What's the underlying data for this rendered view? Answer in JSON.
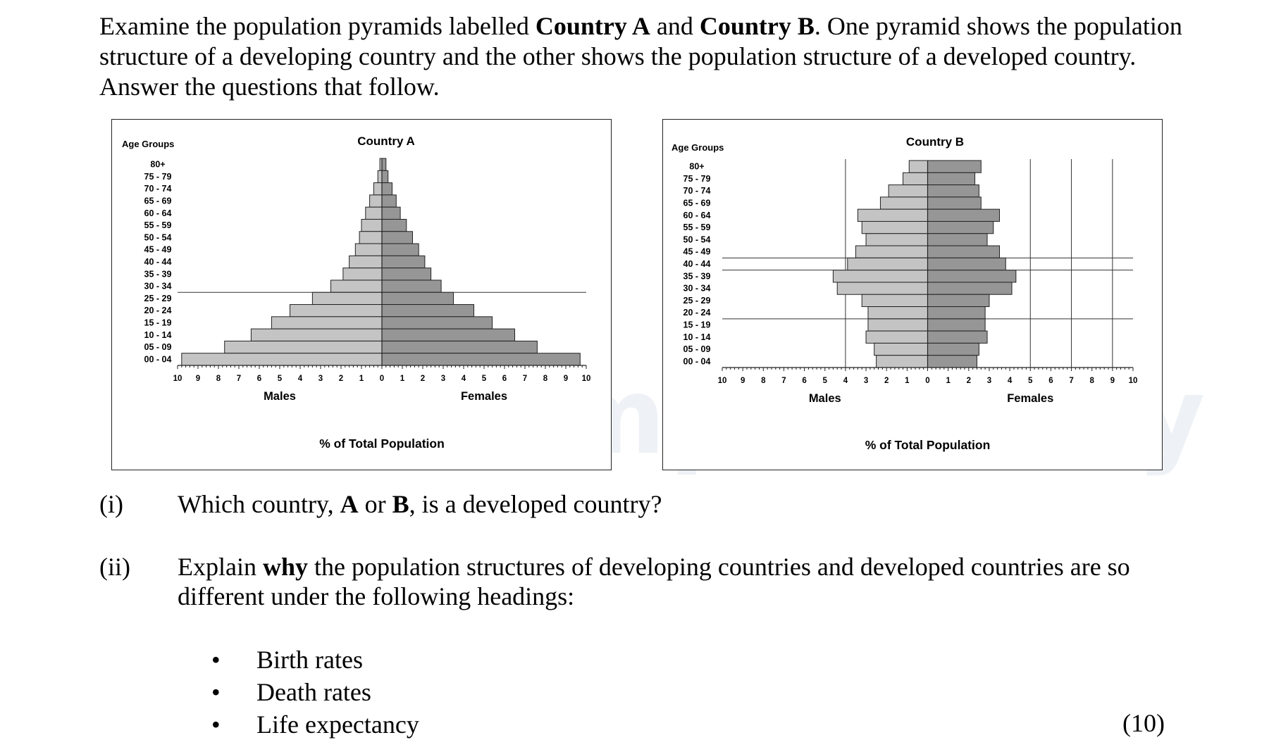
{
  "intro": {
    "part1": "Examine the population pyramids labelled ",
    "country_a": "Country A",
    "and": " and ",
    "country_b": "Country B",
    "part2": ".  One pyramid shows the population structure of a developing country and the other shows the population structure of a developed country. Answer the questions that follow."
  },
  "watermark": "simplestudy",
  "chart_data": [
    {
      "type": "bar",
      "title": "Country A",
      "y_axis_title": "Age Groups",
      "categories": [
        "80+",
        "75 - 79",
        "70 - 74",
        "65 - 69",
        "60 - 64",
        "55 - 59",
        "50 - 54",
        "45 - 49",
        "40 - 44",
        "35 - 39",
        "30 - 34",
        "25 - 29",
        "20 - 24",
        "15 - 19",
        "10 - 14",
        "05 - 09",
        "00 - 04"
      ],
      "series": [
        {
          "name": "Males",
          "values": [
            0.1,
            0.2,
            0.4,
            0.6,
            0.8,
            1.0,
            1.1,
            1.3,
            1.6,
            1.9,
            2.5,
            3.4,
            4.5,
            5.4,
            6.4,
            7.7,
            9.8
          ]
        },
        {
          "name": "Females",
          "values": [
            0.2,
            0.3,
            0.5,
            0.7,
            0.9,
            1.2,
            1.5,
            1.8,
            2.1,
            2.4,
            2.9,
            3.5,
            4.5,
            5.4,
            6.5,
            7.6,
            9.7
          ]
        }
      ],
      "xlabel": "% of Total Population",
      "xlim": [
        -10,
        10
      ],
      "tick_labels": [
        "10",
        "9",
        "8",
        "7",
        "6",
        "5",
        "4",
        "3",
        "2",
        "1",
        "0",
        "1",
        "2",
        "3",
        "4",
        "5",
        "6",
        "7",
        "8",
        "9",
        "10"
      ],
      "grid_lines_x": [],
      "grid_lines_y_between": [
        "30 - 34"
      ],
      "colors": {
        "males": "#c4c4c4",
        "females": "#969696"
      }
    },
    {
      "type": "bar",
      "title": "Country B",
      "y_axis_title": "Age Groups",
      "categories": [
        "80+",
        "75 - 79",
        "70 - 74",
        "65 - 69",
        "60 - 64",
        "55 - 59",
        "50 - 54",
        "45 - 49",
        "40 - 44",
        "35 - 39",
        "30 - 34",
        "25 - 29",
        "20 - 24",
        "15 - 19",
        "10 - 14",
        "05 - 09",
        "00 - 04"
      ],
      "series": [
        {
          "name": "Males",
          "values": [
            0.9,
            1.2,
            1.9,
            2.3,
            3.4,
            3.2,
            3.0,
            3.5,
            3.9,
            4.6,
            4.4,
            3.2,
            2.9,
            2.9,
            3.0,
            2.6,
            2.5
          ]
        },
        {
          "name": "Females",
          "values": [
            2.6,
            2.3,
            2.5,
            2.6,
            3.5,
            3.2,
            2.9,
            3.5,
            3.8,
            4.3,
            4.1,
            3.0,
            2.8,
            2.8,
            2.9,
            2.5,
            2.4
          ]
        }
      ],
      "xlabel": "% of Total Population",
      "xlim": [
        -10,
        10
      ],
      "tick_labels": [
        "10",
        "9",
        "8",
        "7",
        "6",
        "5",
        "4",
        "3",
        "2",
        "1",
        "0",
        "1",
        "2",
        "3",
        "4",
        "5",
        "6",
        "7",
        "8",
        "9",
        "10"
      ],
      "grid_lines_x": [
        -4,
        5,
        7,
        9
      ],
      "grid_lines_y_between": [
        "45 - 49",
        "40 - 44",
        "20 - 24"
      ],
      "colors": {
        "males": "#c4c4c4",
        "females": "#969696"
      }
    }
  ],
  "question_i": {
    "num": "(i)",
    "part1": "Which country, ",
    "a": "A",
    "or": " or ",
    "b": "B",
    "part2": ", is a developed country?"
  },
  "question_ii": {
    "num": "(ii)",
    "part1": "Explain ",
    "why": "why",
    "part2": " the population structures of developing countries and developed countries are so different under the following headings:"
  },
  "bullets": [
    {
      "dot": "•",
      "text": "Birth rates"
    },
    {
      "dot": "•",
      "text": "Death rates"
    },
    {
      "dot": "•",
      "text": "Life expectancy"
    }
  ],
  "marks": "(10)"
}
